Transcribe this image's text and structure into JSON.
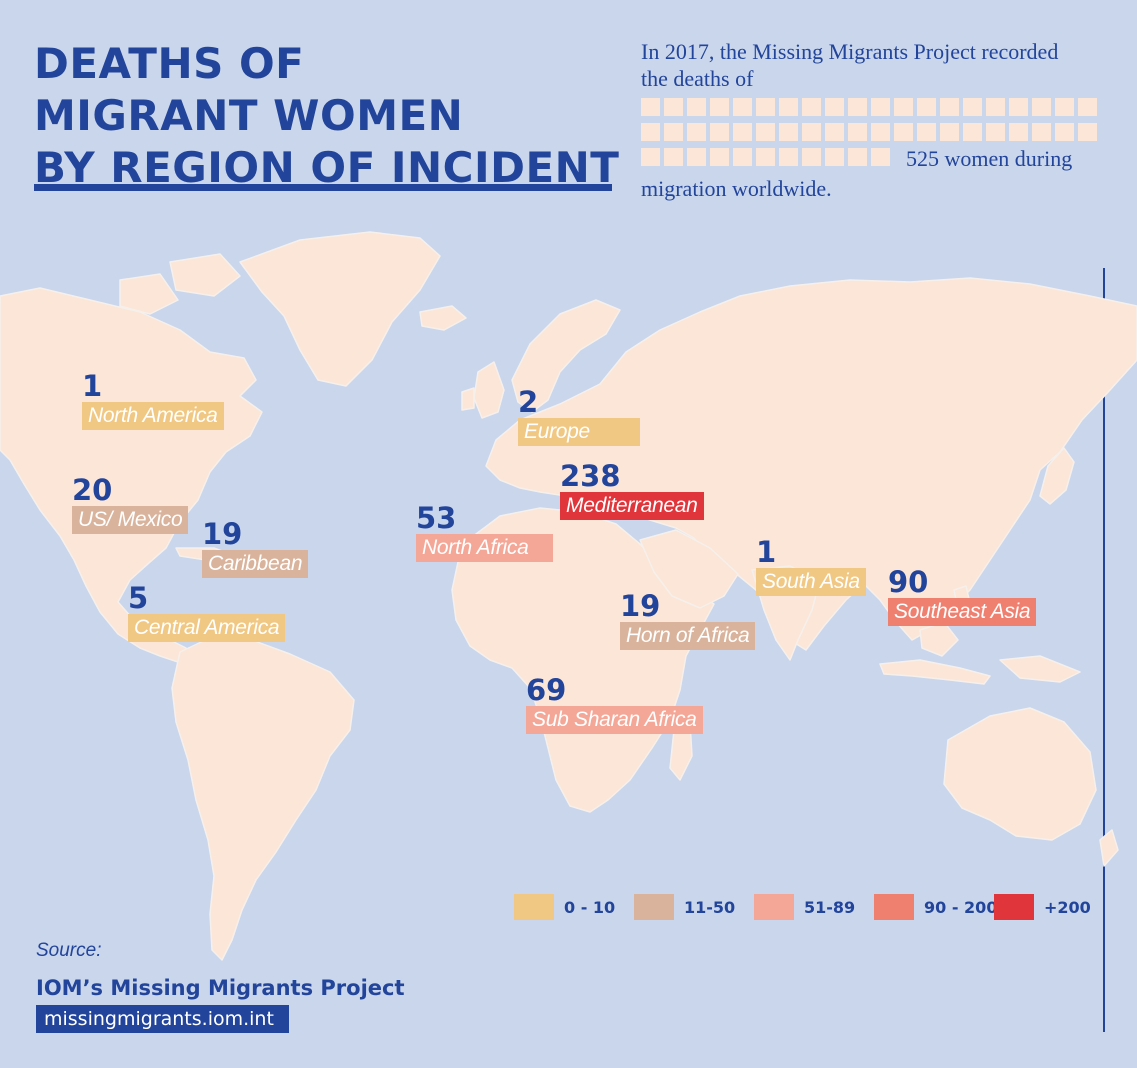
{
  "title_lines": [
    "DEATHS OF",
    "MIGRANT WOMEN",
    "BY REGION OF INCIDENT"
  ],
  "intro": {
    "line1": "In 2017, the Missing Migrants Project recorded",
    "line2": "the deaths of",
    "line3": "525 women during",
    "line4": "migration worldwide."
  },
  "colors": {
    "background": "#c9d6ec",
    "land": "#fbe6d8",
    "accent": "#22449a",
    "scale": [
      "#f0c884",
      "#d9b39c",
      "#f4a797",
      "#ef8070",
      "#e0353a"
    ]
  },
  "legend": [
    "0 - 10",
    "11-50",
    "51-89",
    "90 - 200",
    "+200"
  ],
  "regions": [
    {
      "value": "1",
      "name": "North America",
      "color": "#f0c884"
    },
    {
      "value": "20",
      "name": "US/ Mexico",
      "color": "#d9b39c"
    },
    {
      "value": "19",
      "name": "Caribbean",
      "color": "#d9b39c"
    },
    {
      "value": "5",
      "name": "Central America",
      "color": "#f0c884"
    },
    {
      "value": "2",
      "name": "Europe",
      "color": "#f0c884"
    },
    {
      "value": "238",
      "name": "Mediterranean",
      "color": "#e0353a"
    },
    {
      "value": "53",
      "name": "North Africa",
      "color": "#f4a797"
    },
    {
      "value": "19",
      "name": "Horn of Africa",
      "color": "#d9b39c"
    },
    {
      "value": "69",
      "name": "Sub Sharan Africa",
      "color": "#f4a797"
    },
    {
      "value": "1",
      "name": "South Asia",
      "color": "#f0c884"
    },
    {
      "value": "90",
      "name": "Southeast Asia",
      "color": "#ef8070"
    }
  ],
  "source": {
    "label": "Source:",
    "name": "IOM’s Missing Migrants Project",
    "url": "missingmigrants.iom.int"
  }
}
